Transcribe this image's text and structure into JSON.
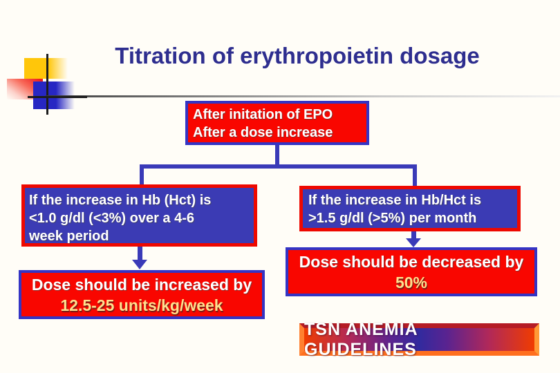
{
  "title": "Titration of erythropoietin dosage",
  "flowchart": {
    "root": {
      "lines": [
        "After initation of EPO",
        "After a dose increase"
      ]
    },
    "left_condition": {
      "lines": [
        "If the increase in Hb (Hct) is",
        "<1.0 g/dl (<3%) over a 4-6",
        "week period"
      ]
    },
    "right_condition": {
      "lines": [
        "If the increase in Hb/Hct is",
        ">1.5 g/dl (>5%) per month"
      ]
    },
    "left_action": {
      "text": "Dose should be increased by",
      "value": "12.5-25 units/kg/week"
    },
    "right_action": {
      "text": "Dose should be decreased by",
      "value": "50%"
    }
  },
  "footer_banner": "TSN ANEMIA GUIDELINES",
  "colors": {
    "title_text": "#2e2e8f",
    "box_red_fill": "#f90600",
    "box_blue_fill": "#3b3bb4",
    "border_blue": "#3434c4",
    "border_red": "#ee0800",
    "connector_blue": "#3a3ab8",
    "box_white_text": "#ffffff",
    "highlight_yellow_text": "#ffdf8e",
    "ornament_yellow": "#ffc60a",
    "ornament_pink": "#ee1d1d",
    "ornament_blue": "#2727c3"
  }
}
